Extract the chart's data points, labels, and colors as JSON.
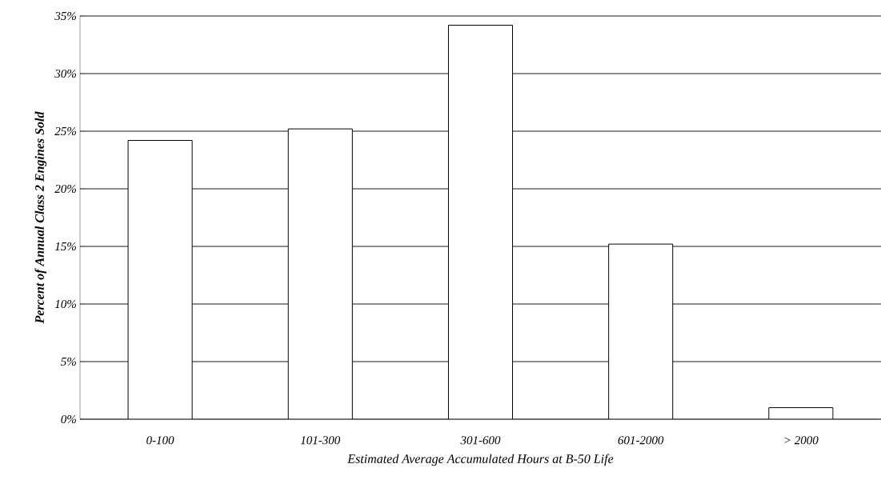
{
  "chart_data": {
    "type": "bar",
    "xlabel": "Estimated Average Accumulated Hours at B-50 Life",
    "ylabel": "Percent of Annual Class 2 Engines Sold",
    "categories": [
      "0-100",
      "101-300",
      "301-600",
      "601-2000",
      "> 2000"
    ],
    "values": [
      24.2,
      25.2,
      34.2,
      15.2,
      1.0
    ],
    "color": "#ffffff",
    "ylim": [
      0,
      35
    ],
    "yticks": [
      {
        "value": 0,
        "label": "0%"
      },
      {
        "value": 5,
        "label": "5%"
      },
      {
        "value": 10,
        "label": "10%"
      },
      {
        "value": 15,
        "label": "15%"
      },
      {
        "value": 20,
        "label": "20%"
      },
      {
        "value": 25,
        "label": "25%"
      },
      {
        "value": 30,
        "label": "30%"
      },
      {
        "value": 35,
        "label": "35%"
      }
    ],
    "grid": "y"
  }
}
